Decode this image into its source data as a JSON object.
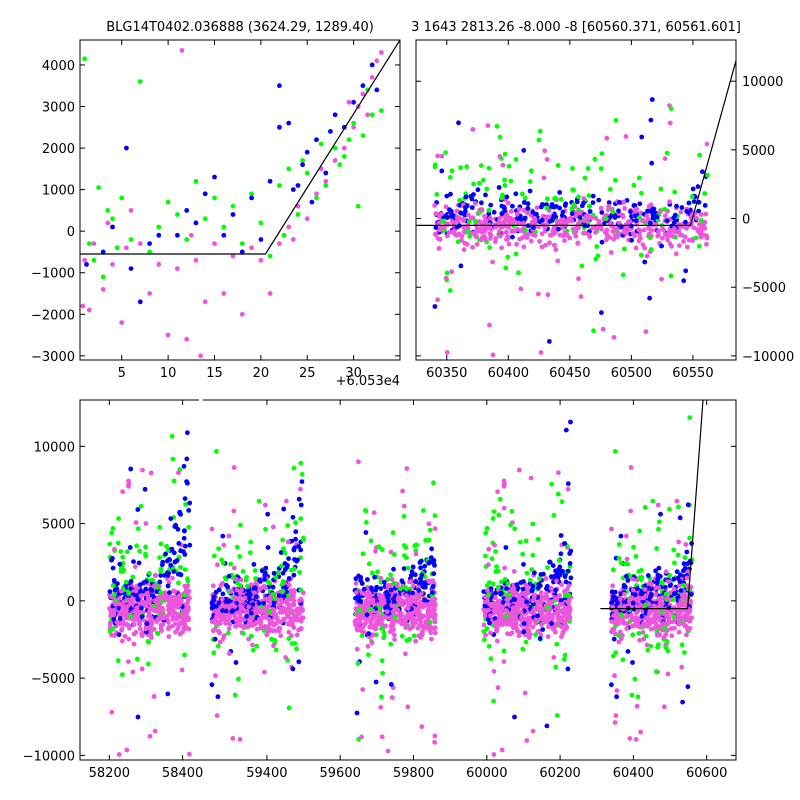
{
  "chart_data": [
    {
      "id": "top-left",
      "type": "scatter",
      "title": "BLG14T0402.036888 (3624.29, 1289.40)",
      "offset_text": "+6.053e4",
      "xlim": [
        0.5,
        35
      ],
      "ylim": [
        -3100,
        4600
      ],
      "xticks": [
        5,
        10,
        15,
        20,
        25,
        30
      ],
      "yticks": [
        -3000,
        -2000,
        -1000,
        0,
        1000,
        2000,
        3000,
        4000
      ],
      "ytick_side": "left",
      "model_line": [
        [
          0.5,
          -550
        ],
        [
          20.5,
          -550
        ],
        [
          35,
          4600
        ]
      ],
      "series": [
        {
          "color": "#00ff00",
          "points": [
            [
              1,
              4150
            ],
            [
              1.5,
              -300
            ],
            [
              2,
              -700
            ],
            [
              2.5,
              1050
            ],
            [
              3,
              -1100
            ],
            [
              3.5,
              500
            ],
            [
              4,
              300
            ],
            [
              4.5,
              -400
            ],
            [
              5,
              800
            ],
            [
              6,
              -200
            ],
            [
              7,
              3600
            ],
            [
              8,
              -500
            ],
            [
              9,
              100
            ],
            [
              10,
              700
            ],
            [
              11,
              400
            ],
            [
              12,
              -200
            ],
            [
              13,
              1200
            ],
            [
              14,
              300
            ],
            [
              15,
              800
            ],
            [
              16,
              100
            ],
            [
              17,
              600
            ],
            [
              18,
              -300
            ],
            [
              19,
              900
            ],
            [
              20,
              200
            ],
            [
              21,
              -600
            ],
            [
              22,
              1100
            ],
            [
              23,
              1500
            ],
            [
              24,
              400
            ],
            [
              25,
              1400
            ],
            [
              26,
              800
            ],
            [
              27,
              1100
            ],
            [
              28,
              2000
            ],
            [
              29,
              1800
            ],
            [
              30,
              2600
            ],
            [
              30.5,
              600
            ],
            [
              31,
              2300
            ],
            [
              31.5,
              3400
            ],
            [
              32,
              2800
            ],
            [
              33,
              2900
            ],
            [
              22.5,
              -100
            ],
            [
              24.5,
              1700
            ],
            [
              26.5,
              2100
            ],
            [
              28.5,
              1600
            ],
            [
              29.5,
              2200
            ]
          ]
        },
        {
          "color": "#0000ff",
          "points": [
            [
              1.2,
              -800
            ],
            [
              3,
              -500
            ],
            [
              4,
              100
            ],
            [
              5.5,
              2000
            ],
            [
              6,
              -900
            ],
            [
              7,
              -1700
            ],
            [
              8,
              -300
            ],
            [
              9,
              -100
            ],
            [
              11,
              -100
            ],
            [
              12,
              500
            ],
            [
              13,
              200
            ],
            [
              14,
              900
            ],
            [
              15,
              1300
            ],
            [
              16,
              -100
            ],
            [
              17,
              400
            ],
            [
              18,
              -500
            ],
            [
              19,
              800
            ],
            [
              20,
              -200
            ],
            [
              21,
              1200
            ],
            [
              22,
              3500
            ],
            [
              23,
              2600
            ],
            [
              22,
              2500
            ],
            [
              23.5,
              1000
            ],
            [
              24,
              1100
            ],
            [
              25,
              1900
            ],
            [
              26,
              2200
            ],
            [
              27,
              1400
            ],
            [
              27.5,
              2400
            ],
            [
              28,
              2800
            ],
            [
              29,
              2500
            ],
            [
              30,
              3100
            ],
            [
              31,
              3500
            ],
            [
              32,
              4000
            ],
            [
              32.5,
              3400
            ],
            [
              25.5,
              700
            ],
            [
              24.5,
              1600
            ]
          ]
        },
        {
          "color": "#ee55dd",
          "points": [
            [
              0.8,
              -1800
            ],
            [
              1,
              -700
            ],
            [
              1.5,
              -1900
            ],
            [
              2,
              -300
            ],
            [
              3,
              -1400
            ],
            [
              3.5,
              200
            ],
            [
              4,
              -800
            ],
            [
              5,
              -2200
            ],
            [
              5.5,
              -400
            ],
            [
              6,
              500
            ],
            [
              7,
              -300
            ],
            [
              8,
              -1500
            ],
            [
              9,
              -800
            ],
            [
              10,
              -2500
            ],
            [
              11,
              -900
            ],
            [
              11.5,
              4350
            ],
            [
              12,
              -2600
            ],
            [
              12.5,
              -100
            ],
            [
              13,
              -700
            ],
            [
              13.5,
              -3000
            ],
            [
              14,
              -1700
            ],
            [
              15,
              -300
            ],
            [
              16,
              -1500
            ],
            [
              17,
              -600
            ],
            [
              18,
              -2000
            ],
            [
              19,
              -400
            ],
            [
              20,
              -700
            ],
            [
              21,
              -1500
            ],
            [
              22,
              -300
            ],
            [
              23,
              100
            ],
            [
              23.5,
              -200
            ],
            [
              24,
              600
            ],
            [
              25,
              300
            ],
            [
              26,
              900
            ],
            [
              27,
              1200
            ],
            [
              28,
              1700
            ],
            [
              29,
              2000
            ],
            [
              30,
              2500
            ],
            [
              30.5,
              3000
            ],
            [
              31,
              3300
            ],
            [
              31.5,
              2800
            ],
            [
              32,
              3700
            ],
            [
              32.5,
              4100
            ],
            [
              33,
              4300
            ],
            [
              29.5,
              3100
            ],
            [
              26.5,
              1500
            ]
          ]
        }
      ]
    },
    {
      "id": "top-right",
      "type": "scatter",
      "title": "3 1643 2813.26 -8.000 -8 [60560.371, 60561.601]",
      "xlim": [
        60325,
        60585
      ],
      "ylim": [
        -10300,
        13000
      ],
      "xticks": [
        60350,
        60400,
        60450,
        60500,
        60550
      ],
      "yticks": [
        -10000,
        -5000,
        0,
        5000,
        10000
      ],
      "ytick_side": "right",
      "model_line": [
        [
          60325,
          -500
        ],
        [
          60548,
          -500
        ],
        [
          60585,
          11500
        ]
      ]
    },
    {
      "id": "bottom",
      "type": "scatter",
      "title": "",
      "xlim": [
        58120,
        60680
      ],
      "ylim": [
        -10300,
        13000
      ],
      "xticks": [
        58200,
        58400,
        59400,
        59600,
        59800,
        60000,
        60200,
        60400,
        60600
      ],
      "yticks": [
        -10000,
        -5000,
        0,
        5000,
        10000
      ],
      "ytick_side": "left",
      "gap": [
        58450,
        59220
      ],
      "seasons": [
        [
          58200,
          58420
        ],
        [
          59250,
          59500
        ],
        [
          59640,
          59860
        ],
        [
          59990,
          60230
        ],
        [
          60340,
          60560
        ]
      ],
      "model_line": [
        [
          60310,
          -500
        ],
        [
          60548,
          -500
        ],
        [
          60590,
          13000
        ]
      ]
    }
  ],
  "colors": {
    "green": "#00ff00",
    "blue": "#0000ff",
    "magenta": "#ee55dd",
    "line": "#000000",
    "axes": "#000000"
  }
}
